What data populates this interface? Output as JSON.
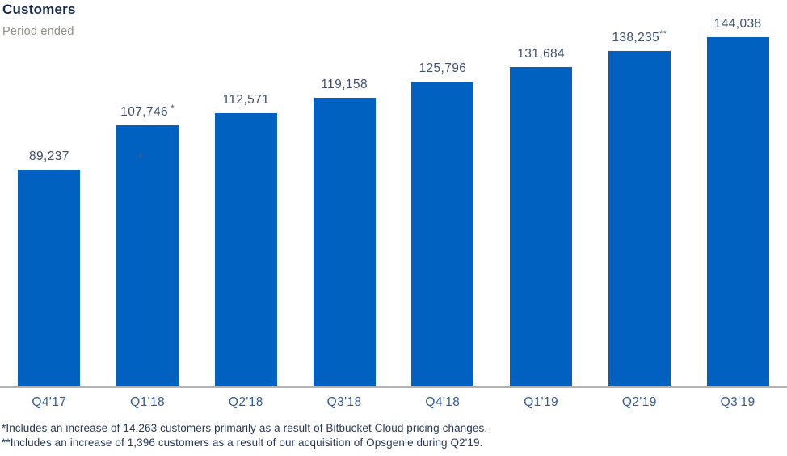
{
  "header": {
    "title": "Customers",
    "subtitle": "Period ended"
  },
  "chart_data": {
    "type": "bar",
    "title": "Customers",
    "subtitle": "Period ended",
    "categories": [
      "Q4'17",
      "Q1'18",
      "Q2'18",
      "Q3'18",
      "Q4'18",
      "Q1'19",
      "Q2'19",
      "Q3'19"
    ],
    "values": [
      89237,
      107746,
      112571,
      119158,
      125796,
      131684,
      138235,
      144038
    ],
    "value_labels": [
      "89,237",
      "107,746",
      "112,571",
      "119,158",
      "125,796",
      "131,684",
      "138,235",
      "144,038"
    ],
    "label_suffixes": [
      "",
      " *",
      "",
      "",
      "",
      "",
      "**",
      ""
    ],
    "xlabel": "",
    "ylabel": "",
    "ylim": [
      0,
      144038
    ],
    "grid": false,
    "legend": false,
    "bar_color": "#0061c0"
  },
  "artifacts": {
    "stray_asterisk": "*"
  },
  "footnotes": {
    "line1": "*Includes an increase of 14,263 customers primarily as a result of Bitbucket Cloud pricing changes.",
    "line2": "**Includes an increase of 1,396 customers as a result of our acquisition of Opsgenie during Q2'19."
  },
  "colors": {
    "title": "#172b4d",
    "subtitle": "#8e8e88",
    "bar": "#0061c0",
    "value_label": "#3d4d6b",
    "tick_label": "#2f5a9b",
    "axis_line": "#b3b3b3",
    "footnote": "#253858",
    "stray_asterisk": "#46607c"
  }
}
